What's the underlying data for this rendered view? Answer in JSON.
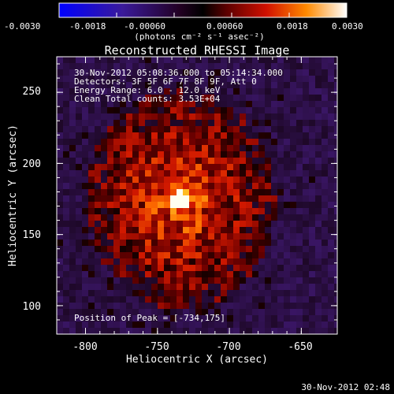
{
  "colorbar": {
    "ticks": [
      "-0.0030",
      "-0.0018",
      "-0.00060",
      "0.00060",
      "0.0018",
      "0.0030"
    ],
    "units": "(photons cm⁻² s⁻¹ asec⁻²)"
  },
  "title": "Reconstructed RHESSI Image",
  "info": {
    "time_range": "30-Nov-2012 05:08:36.000 to 05:14:34.000",
    "detectors": "Detectors: 3F 5F 6F 7F 8F 9F, Att 0",
    "energy": "Energy Range: 6.0 - 12.0 keV",
    "clean": "Clean    Total counts: 3.53E+04"
  },
  "peak": "Position of Peak = [-734,175]",
  "axes": {
    "xlabel": "Heliocentric X (arcsec)",
    "ylabel": "Heliocentric Y (arcsec)",
    "xticks": [
      "-800",
      "-750",
      "-700",
      "-650"
    ],
    "yticks": [
      "250",
      "200",
      "150",
      "100"
    ]
  },
  "timestamp": "30-Nov-2012 02:48",
  "chart_data": {
    "type": "heatmap",
    "title": "Reconstructed RHESSI Image",
    "xlabel": "Heliocentric X (arcsec)",
    "ylabel": "Heliocentric Y (arcsec)",
    "xlim": [
      -820,
      -625
    ],
    "ylim": [
      80,
      275
    ],
    "xticks": [
      -800,
      -750,
      -700,
      -650
    ],
    "yticks": [
      100,
      150,
      200,
      250
    ],
    "colorbar_range": [
      -0.003,
      0.003
    ],
    "colorbar_units": "photons cm^-2 s^-1 asec^-2",
    "peak": [
      -734,
      175
    ],
    "energy_range_keV": [
      6.0,
      12.0
    ],
    "detectors": [
      "3F",
      "5F",
      "6F",
      "7F",
      "8F",
      "9F"
    ],
    "attenuator": 0,
    "total_counts": 35300
  }
}
